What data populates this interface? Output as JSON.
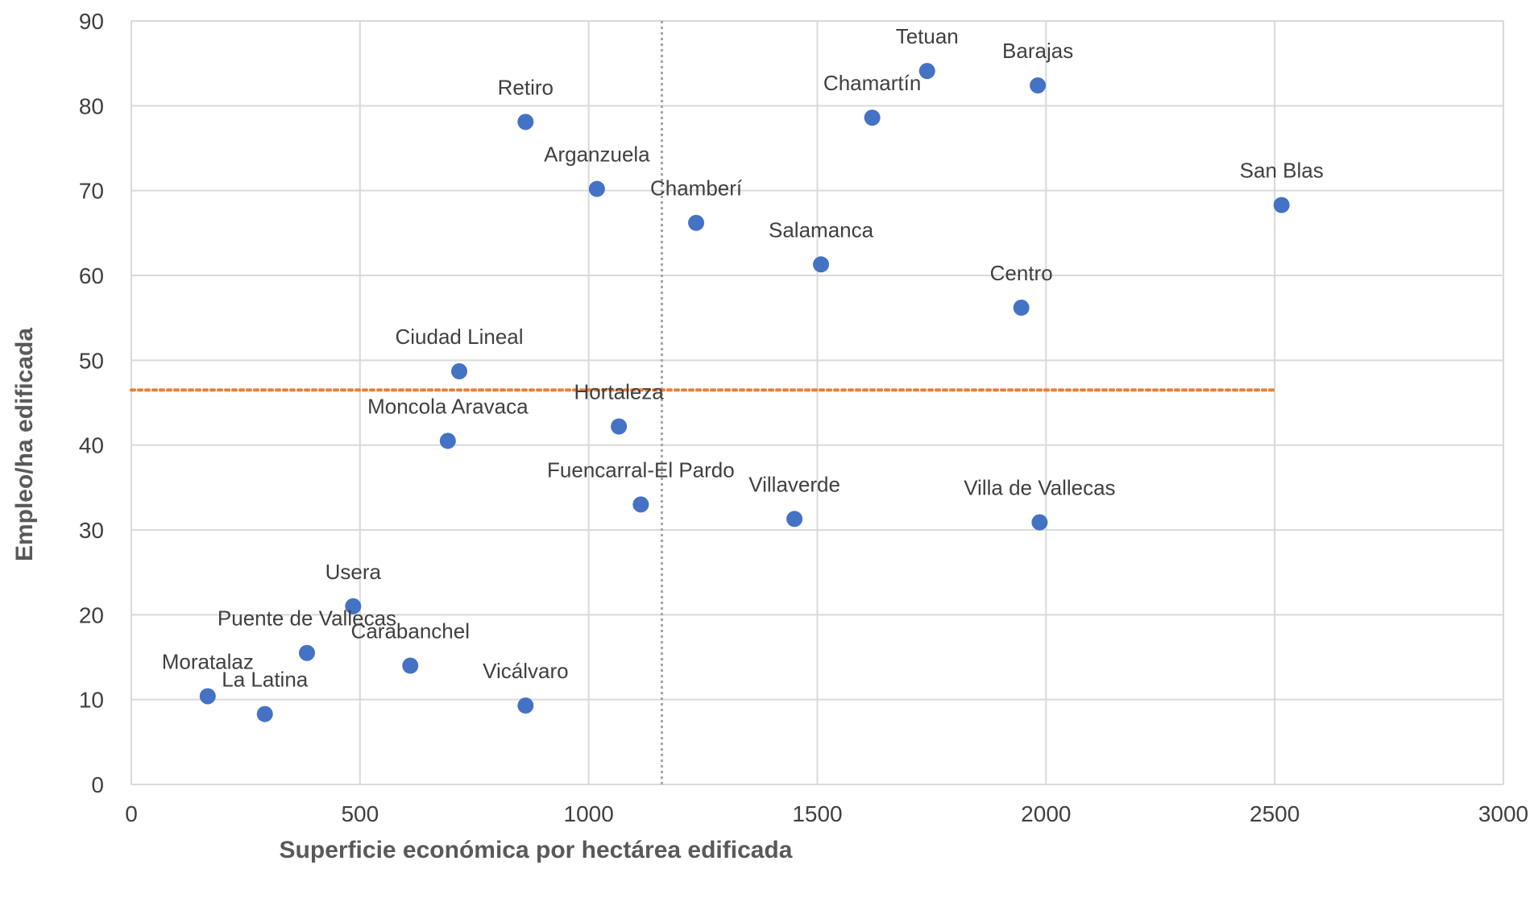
{
  "chart_data": {
    "type": "scatter",
    "title": "",
    "xlabel": "Superficie económica por hectárea edificada",
    "ylabel": "Empleo/ha edificada",
    "xlim": [
      0,
      3000
    ],
    "ylim": [
      0,
      90
    ],
    "x_ticks": [
      "0",
      "500",
      "1000",
      "1500",
      "2000",
      "2500",
      "3000"
    ],
    "y_ticks": [
      "0",
      "10",
      "20",
      "30",
      "40",
      "50",
      "60",
      "70",
      "80",
      "90"
    ],
    "grid": true,
    "colors": {
      "points": "#4472C4",
      "hline": "#ED7D31",
      "vline": "#A5A5A5",
      "grid": "#D9D9D9"
    },
    "reference_lines": {
      "vertical_x": 1160,
      "horizontal_y": 46.5
    },
    "points": [
      {
        "label": "Tetuan",
        "x": 1740,
        "y": 84.1
      },
      {
        "label": "Barajas",
        "x": 1982,
        "y": 82.4
      },
      {
        "label": "Retiro",
        "x": 862,
        "y": 78.1
      },
      {
        "label": "Chamartín",
        "x": 1620,
        "y": 78.6
      },
      {
        "label": "Arganzuela",
        "x": 1018,
        "y": 70.2
      },
      {
        "label": "Chamberí",
        "x": 1235,
        "y": 66.2
      },
      {
        "label": "San Blas",
        "x": 2515,
        "y": 68.3
      },
      {
        "label": "Salamanca",
        "x": 1508,
        "y": 61.3
      },
      {
        "label": "Centro",
        "x": 1946,
        "y": 56.2
      },
      {
        "label": "Ciudad Lineal",
        "x": 717,
        "y": 48.7
      },
      {
        "label": "Hortaleza",
        "x": 1066,
        "y": 42.2
      },
      {
        "label": "Moncola Aravaca",
        "x": 692,
        "y": 40.5
      },
      {
        "label": "Fuencarral-El Pardo",
        "x": 1114,
        "y": 33.0
      },
      {
        "label": "Villaverde",
        "x": 1450,
        "y": 31.3
      },
      {
        "label": "Villa de Vallecas",
        "x": 1986,
        "y": 30.9
      },
      {
        "label": "Usera",
        "x": 485,
        "y": 21.0
      },
      {
        "label": "Puente de Vallecas",
        "x": 384,
        "y": 15.5
      },
      {
        "label": "Carabanchel",
        "x": 610,
        "y": 14.0
      },
      {
        "label": "Moratalaz",
        "x": 167,
        "y": 10.4
      },
      {
        "label": "La Latina",
        "x": 292,
        "y": 8.3
      },
      {
        "label": "Vicálvaro",
        "x": 862,
        "y": 9.3
      }
    ]
  }
}
